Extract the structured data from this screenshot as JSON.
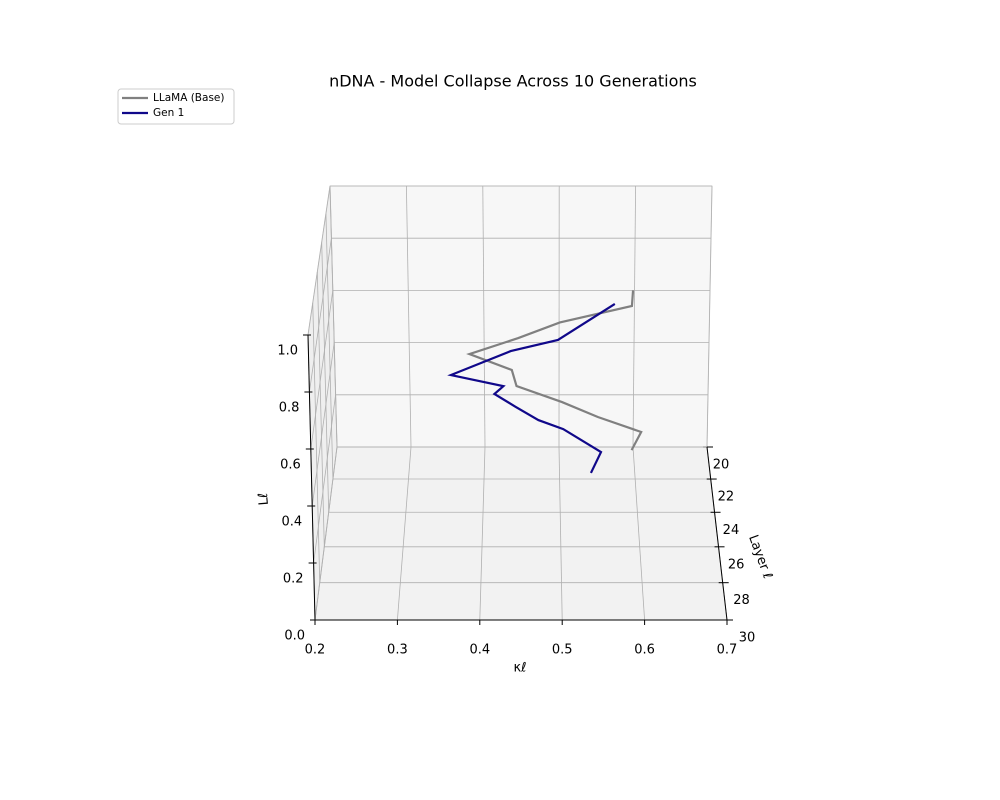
{
  "chart_data": {
    "type": "line3d",
    "title": "nDNA - Model Collapse Across 10 Generations",
    "xlabel": "κℓ",
    "ylabel": "Layer ℓ",
    "zlabel": "Lℓ",
    "layers": [
      20,
      21,
      22,
      23,
      24,
      25,
      26,
      27,
      28,
      29,
      30
    ],
    "series": [
      {
        "name": "LLaMA (Base)",
        "color": "#808080",
        "kappa": [
          0.598,
          0.595,
          0.5,
          0.446,
          0.384,
          0.438,
          0.444,
          0.5,
          0.543,
          0.594,
          0.581
        ],
        "values": [
          0.6,
          0.596,
          0.59,
          0.588,
          0.586,
          0.585,
          0.585,
          0.586,
          0.592,
          0.599,
          0.596
        ]
      },
      {
        "name": "Gen 1",
        "color": "#10088a",
        "kappa": [
          0.574,
          0.498,
          0.436,
          0.359,
          0.427,
          0.416,
          0.443,
          0.471,
          0.501,
          0.546,
          0.533
        ],
        "values": [
          0.548,
          0.467,
          0.482,
          0.45,
          0.467,
          0.497,
          0.509,
          0.521,
          0.549,
          0.528,
          0.516
        ]
      }
    ],
    "xlim": [
      0.2,
      0.7
    ],
    "xticks": [
      {
        "value": 0.2,
        "label": "0.2"
      },
      {
        "value": 0.3,
        "label": "0.3"
      },
      {
        "value": 0.4,
        "label": "0.4"
      },
      {
        "value": 0.5,
        "label": "0.5"
      },
      {
        "value": 0.6,
        "label": "0.6"
      },
      {
        "value": 0.7,
        "label": "0.7"
      }
    ],
    "ylim": [
      20,
      30
    ],
    "yticks": [
      20,
      22,
      24,
      26,
      28,
      30
    ],
    "zlim": [
      0,
      1
    ],
    "zticks": [
      {
        "value": 0,
        "label": "0.0"
      },
      {
        "value": 0.2,
        "label": "0.2"
      },
      {
        "value": 0.4,
        "label": "0.4"
      },
      {
        "value": 0.6,
        "label": "0.6"
      },
      {
        "value": 0.8,
        "label": "0.8"
      },
      {
        "value": 1,
        "label": "1.0"
      }
    ],
    "grid": true,
    "legend": "upper left"
  }
}
